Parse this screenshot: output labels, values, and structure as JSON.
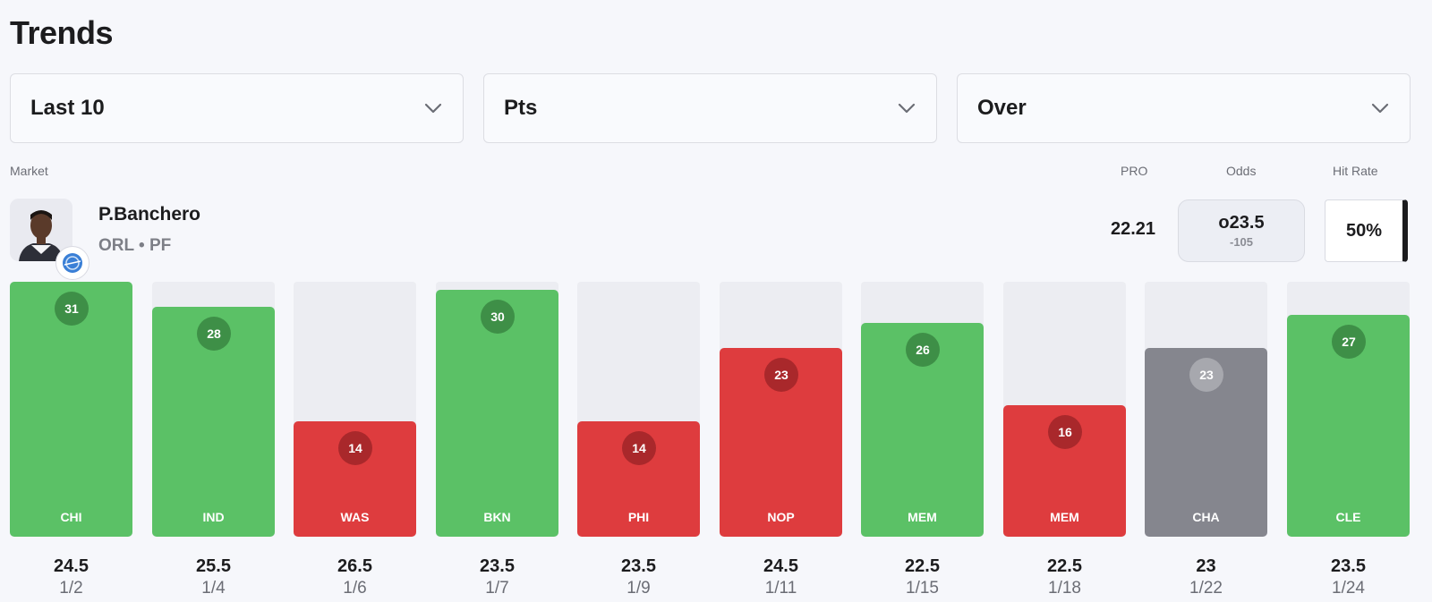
{
  "title": "Trends",
  "filters": {
    "range": "Last 10",
    "stat": "Pts",
    "side": "Over"
  },
  "headers": {
    "market": "Market",
    "pro": "PRO",
    "odds": "Odds",
    "hit_rate": "Hit Rate"
  },
  "player": {
    "name": "P.Banchero",
    "team_pos": "ORL • PF",
    "pro": "22.21",
    "odds_line": "o23.5",
    "odds_price": "-105",
    "hit_rate": "50%"
  },
  "colors": {
    "win": "#5bc166",
    "loss": "#de3c3e",
    "push": "#85868e"
  },
  "games": [
    {
      "opp": "CHI",
      "pts": 31,
      "line": "24.5",
      "date": "1/2",
      "result": "win"
    },
    {
      "opp": "IND",
      "pts": 28,
      "line": "25.5",
      "date": "1/4",
      "result": "win"
    },
    {
      "opp": "WAS",
      "pts": 14,
      "line": "26.5",
      "date": "1/6",
      "result": "loss"
    },
    {
      "opp": "BKN",
      "pts": 30,
      "line": "23.5",
      "date": "1/7",
      "result": "win"
    },
    {
      "opp": "PHI",
      "pts": 14,
      "line": "23.5",
      "date": "1/9",
      "result": "loss"
    },
    {
      "opp": "NOP",
      "pts": 23,
      "line": "24.5",
      "date": "1/11",
      "result": "loss"
    },
    {
      "opp": "MEM",
      "pts": 26,
      "line": "22.5",
      "date": "1/15",
      "result": "win"
    },
    {
      "opp": "MEM",
      "pts": 16,
      "line": "22.5",
      "date": "1/18",
      "result": "loss"
    },
    {
      "opp": "CHA",
      "pts": 23,
      "line": "23",
      "date": "1/22",
      "result": "push"
    },
    {
      "opp": "CLE",
      "pts": 27,
      "line": "23.5",
      "date": "1/24",
      "result": "win"
    }
  ]
}
